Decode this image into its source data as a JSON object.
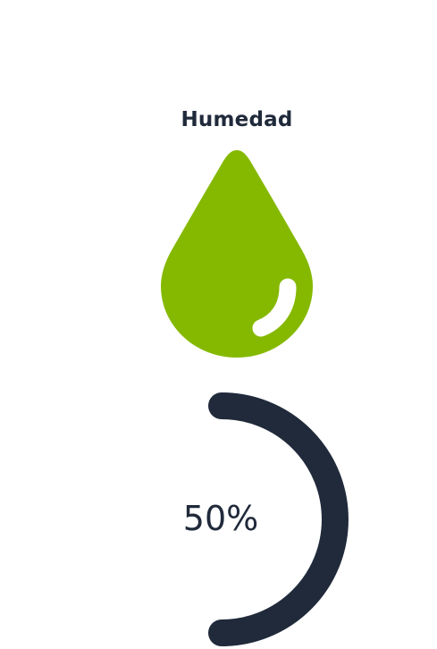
{
  "widget": {
    "title": "Humedad",
    "icon": "water-drop-icon",
    "value_label": "50%",
    "value_percent": 50
  },
  "colors": {
    "drop": "#85b900",
    "highlight": "#ffffff",
    "gauge": "#202a3b",
    "text": "#202a3b"
  }
}
